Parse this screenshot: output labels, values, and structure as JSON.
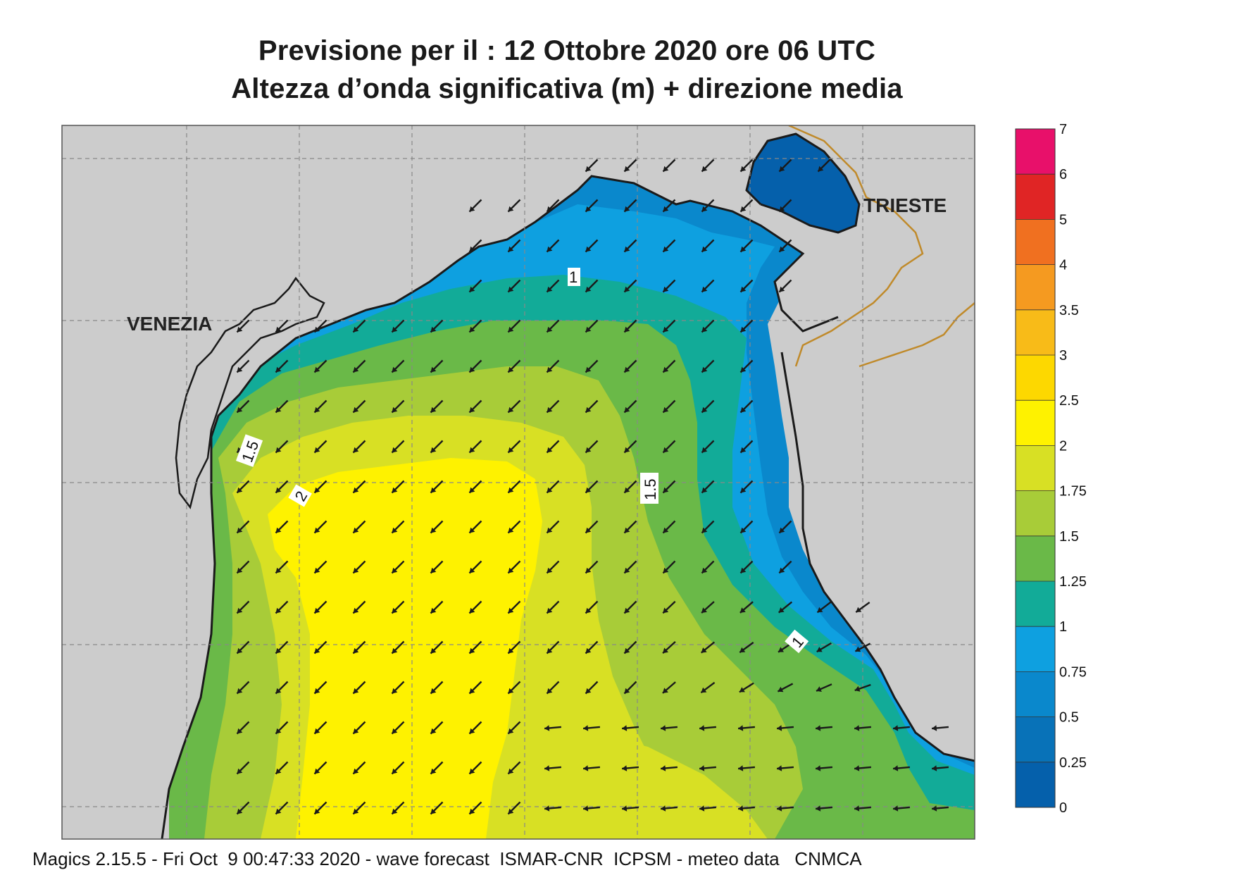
{
  "title_line1": "Previsione per il  :  12  Ottobre  2020   ore 06 UTC",
  "title_line2": "Altezza d’onda significativa (m) + direzione media",
  "places": {
    "venezia": "VENEZIA",
    "trieste": "TRIESTE"
  },
  "contour_labels": [
    "1",
    "1.5",
    "2",
    "1.5",
    "1"
  ],
  "colorbar": {
    "ticks": [
      "7",
      "6",
      "5",
      "4",
      "3.5",
      "3",
      "2.5",
      "2",
      "1.75",
      "1.5",
      "1.25",
      "1",
      "0.75",
      "0.5",
      "0.25",
      "0"
    ],
    "colors": [
      "#e8106a",
      "#e02525",
      "#f07020",
      "#f59a20",
      "#f8bb18",
      "#fdd800",
      "#fef200",
      "#d8e024",
      "#a8cc38",
      "#6ab948",
      "#12ab98",
      "#0ea0e0",
      "#0a88cc",
      "#0872b8",
      "#0560ab"
    ]
  },
  "footer": "Magics 2.15.5 - Fri Oct  9 00:47:33 2020 - wave forecast  ISMAR-CNR  ICPSM - meteo data   CNMCA",
  "colors": {
    "land": "#cccccc",
    "coast": "#1a1a1a",
    "border": "#c08a2a",
    "arrow": "#1a1a1a"
  }
}
